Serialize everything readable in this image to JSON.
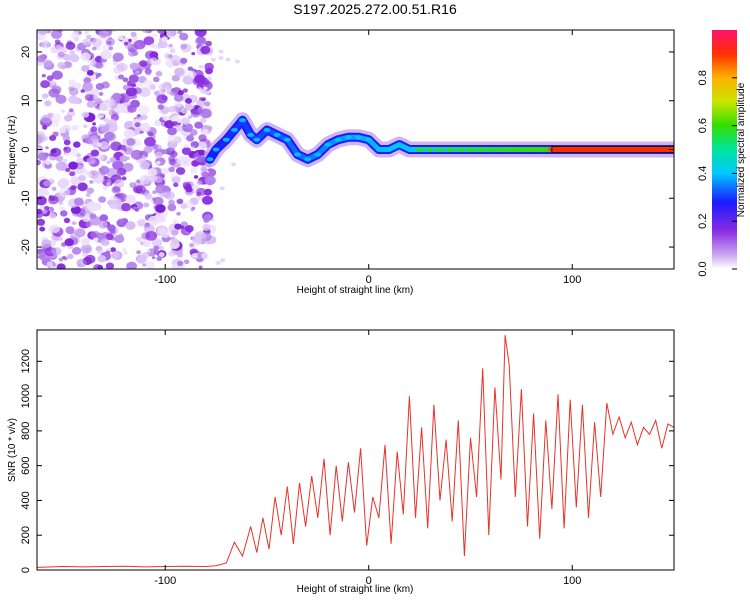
{
  "title": "S197.2025.272.00.51.R16",
  "colors": {
    "snr_line": "#e8322a",
    "axis": "#000000",
    "spectrum_noise": "#8a2be2"
  },
  "chart_data": [
    {
      "type": "heatmap",
      "xlabel": "Height of straight line (km)",
      "ylabel": "Frequency (Hz)",
      "xlim": [
        -163,
        150
      ],
      "ylim": [
        -24.5,
        24.5
      ],
      "xticks": [
        -100,
        0,
        100
      ],
      "yticks": [
        -20,
        -10,
        0,
        10,
        20
      ],
      "xtick_labels": [
        "-100",
        "0",
        "100"
      ],
      "ytick_labels": [
        "-20",
        "-10",
        "0",
        "10",
        "20"
      ],
      "noise_region": [
        -163,
        -80
      ],
      "ridge_centerline": [
        [
          -78,
          -2
        ],
        [
          -75,
          0
        ],
        [
          -70,
          2
        ],
        [
          -66,
          4
        ],
        [
          -62,
          6
        ],
        [
          -58,
          3
        ],
        [
          -55,
          2
        ],
        [
          -50,
          4
        ],
        [
          -45,
          3
        ],
        [
          -40,
          2
        ],
        [
          -35,
          -1
        ],
        [
          -30,
          -2
        ],
        [
          -25,
          -1
        ],
        [
          -20,
          1
        ],
        [
          -15,
          2
        ],
        [
          -10,
          2.5
        ],
        [
          -5,
          2.5
        ],
        [
          0,
          2
        ],
        [
          5,
          0
        ],
        [
          10,
          0
        ],
        [
          15,
          1
        ],
        [
          20,
          0
        ],
        [
          30,
          0
        ],
        [
          40,
          0
        ],
        [
          50,
          0
        ],
        [
          60,
          0
        ],
        [
          70,
          0
        ],
        [
          80,
          0
        ],
        [
          90,
          0
        ],
        [
          150,
          0
        ]
      ],
      "colorbar": {
        "label": "Normalized spectral amplitude",
        "range": [
          0,
          1
        ],
        "ticks": [
          0.0,
          0.2,
          0.4,
          0.6,
          0.8
        ],
        "tick_labels": [
          "0.0",
          "0.2",
          "0.4",
          "0.6",
          "0.8"
        ]
      }
    },
    {
      "type": "line",
      "xlabel": "Height of straight line (km)",
      "ylabel": "SNR (10 * v/v)",
      "xlim": [
        -163,
        150
      ],
      "ylim": [
        0,
        1380
      ],
      "xticks": [
        -100,
        0,
        100
      ],
      "yticks": [
        0,
        200,
        400,
        600,
        800,
        1000,
        1200
      ],
      "xtick_labels": [
        "-100",
        "0",
        "100"
      ],
      "ytick_labels": [
        "0",
        "200",
        "400",
        "600",
        "800",
        "1000",
        "1200"
      ],
      "series": [
        {
          "name": "SNR",
          "x": [
            -163,
            -150,
            -140,
            -130,
            -120,
            -110,
            -100,
            -90,
            -80,
            -75,
            -70,
            -66,
            -62,
            -58,
            -55,
            -52,
            -49,
            -46,
            -43,
            -40,
            -37,
            -34,
            -31,
            -28,
            -25,
            -22,
            -19,
            -16,
            -13,
            -10,
            -7,
            -4,
            -1,
            2,
            5,
            8,
            11,
            14,
            17,
            20,
            23,
            26,
            29,
            32,
            35,
            38,
            41,
            44,
            47,
            50,
            53,
            56,
            59,
            62,
            65,
            67,
            69,
            72,
            75,
            78,
            81,
            84,
            87,
            90,
            93,
            96,
            99,
            102,
            105,
            108,
            111,
            114,
            117,
            120,
            123,
            126,
            129,
            132,
            135,
            138,
            141,
            144,
            147,
            150
          ],
          "y": [
            15,
            20,
            18,
            20,
            22,
            18,
            20,
            22,
            20,
            25,
            40,
            160,
            80,
            250,
            100,
            300,
            120,
            420,
            200,
            480,
            150,
            500,
            250,
            540,
            300,
            640,
            200,
            600,
            280,
            620,
            330,
            700,
            140,
            420,
            300,
            720,
            150,
            680,
            320,
            1000,
            300,
            820,
            240,
            950,
            400,
            750,
            280,
            860,
            80,
            760,
            420,
            1160,
            200,
            1050,
            520,
            1350,
            1180,
            420,
            1040,
            250,
            900,
            180,
            860,
            350,
            1010,
            240,
            980,
            360,
            950,
            300,
            850,
            420,
            960,
            780,
            880,
            760,
            850,
            720,
            820,
            780,
            860,
            700,
            840,
            820
          ]
        }
      ]
    }
  ]
}
